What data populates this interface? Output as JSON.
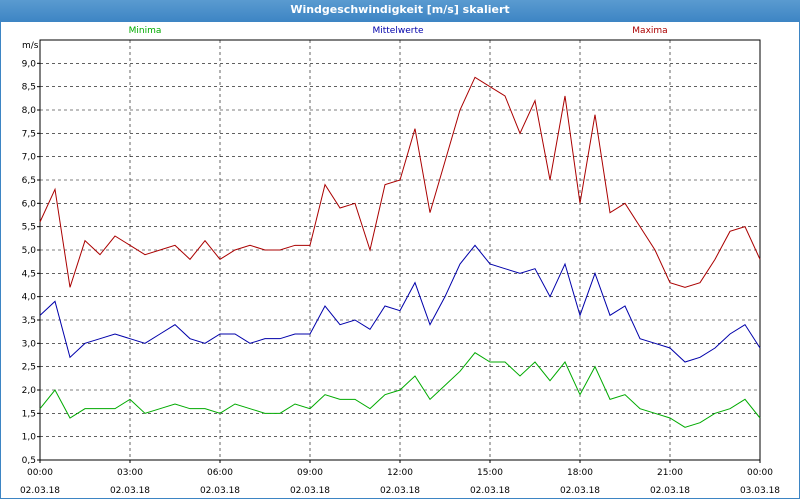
{
  "window": {
    "title": "Windgeschwindigkeit [m/s] skaliert"
  },
  "legend": [
    {
      "label": "Minima",
      "color": "#00aa00"
    },
    {
      "label": "Mittelwerte",
      "color": "#0000aa"
    },
    {
      "label": "Maxima",
      "color": "#aa0000"
    }
  ],
  "chart_data": {
    "type": "line",
    "title": "Windgeschwindigkeit [m/s] skaliert",
    "ylabel": "m/s",
    "ylim": [
      0.5,
      9.5
    ],
    "yticks": [
      "0,5",
      "1,0",
      "1,5",
      "2,0",
      "2,5",
      "3,0",
      "3,5",
      "4,0",
      "4,5",
      "5,0",
      "5,5",
      "6,0",
      "6,5",
      "7,0",
      "7,5",
      "8,0",
      "8,5",
      "9,0"
    ],
    "xlim": [
      "02.03.18 00:00",
      "03.03.18 00:00"
    ],
    "xticks": [
      {
        "time": "00:00",
        "date": "02.03.18"
      },
      {
        "time": "03:00",
        "date": "02.03.18"
      },
      {
        "time": "06:00",
        "date": "02.03.18"
      },
      {
        "time": "09:00",
        "date": "02.03.18"
      },
      {
        "time": "12:00",
        "date": "02.03.18"
      },
      {
        "time": "15:00",
        "date": "02.03.18"
      },
      {
        "time": "18:00",
        "date": "02.03.18"
      },
      {
        "time": "21:00",
        "date": "02.03.18"
      },
      {
        "time": "00:00",
        "date": "03.03.18"
      }
    ],
    "grid": true,
    "legend_position": "top",
    "x_hours": [
      0,
      0.5,
      1,
      1.5,
      2,
      2.5,
      3,
      3.5,
      4,
      4.5,
      5,
      5.5,
      6,
      6.5,
      7,
      7.5,
      8,
      8.5,
      9,
      9.5,
      10,
      10.5,
      11,
      11.5,
      12,
      12.5,
      13,
      13.5,
      14,
      14.5,
      15,
      15.5,
      16,
      16.5,
      17,
      17.5,
      18,
      18.5,
      19,
      19.5,
      20,
      20.5,
      21,
      21.5,
      22,
      22.5,
      23,
      23.5,
      24
    ],
    "series": [
      {
        "name": "Maxima",
        "color": "#aa0000",
        "values": [
          5.6,
          6.3,
          4.2,
          5.2,
          4.9,
          5.3,
          5.1,
          4.9,
          5.0,
          5.1,
          4.8,
          5.2,
          4.8,
          5.0,
          5.1,
          5.0,
          5.0,
          5.1,
          5.1,
          6.4,
          5.9,
          6.0,
          5.0,
          6.4,
          6.5,
          7.6,
          5.8,
          6.9,
          8.0,
          8.7,
          8.5,
          8.3,
          7.5,
          8.2,
          6.5,
          8.3,
          6.0,
          7.9,
          5.8,
          6.0,
          5.5,
          5.0,
          4.3,
          4.2,
          4.3,
          4.8,
          5.4,
          5.5,
          4.8
        ]
      },
      {
        "name": "Mittelwerte",
        "color": "#0000aa",
        "values": [
          3.6,
          3.9,
          2.7,
          3.0,
          3.1,
          3.2,
          3.1,
          3.0,
          3.2,
          3.4,
          3.1,
          3.0,
          3.2,
          3.2,
          3.0,
          3.1,
          3.1,
          3.2,
          3.2,
          3.8,
          3.4,
          3.5,
          3.3,
          3.8,
          3.7,
          4.3,
          3.4,
          4.0,
          4.7,
          5.1,
          4.7,
          4.6,
          4.5,
          4.6,
          4.0,
          4.7,
          3.6,
          4.5,
          3.6,
          3.8,
          3.1,
          3.0,
          2.9,
          2.6,
          2.7,
          2.9,
          3.2,
          3.4,
          2.9
        ]
      },
      {
        "name": "Minima",
        "color": "#00aa00",
        "values": [
          1.6,
          2.0,
          1.4,
          1.6,
          1.6,
          1.6,
          1.8,
          1.5,
          1.6,
          1.7,
          1.6,
          1.6,
          1.5,
          1.7,
          1.6,
          1.5,
          1.5,
          1.7,
          1.6,
          1.9,
          1.8,
          1.8,
          1.6,
          1.9,
          2.0,
          2.3,
          1.8,
          2.1,
          2.4,
          2.8,
          2.6,
          2.6,
          2.3,
          2.6,
          2.2,
          2.6,
          1.9,
          2.5,
          1.8,
          1.9,
          1.6,
          1.5,
          1.4,
          1.2,
          1.3,
          1.5,
          1.6,
          1.8,
          1.4
        ]
      }
    ]
  }
}
